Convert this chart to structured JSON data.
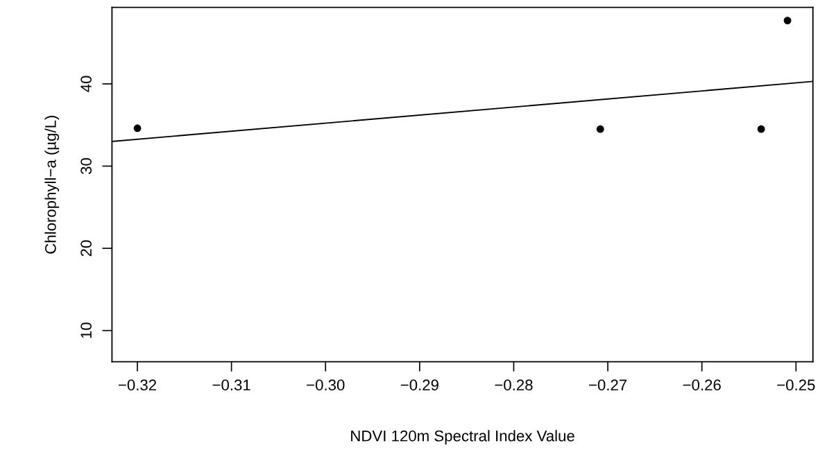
{
  "chart_data": {
    "type": "scatter",
    "xlabel": "NDVI 120m Spectral Index Value",
    "ylabel": "Chlorophyll−a (µg/L)",
    "series": [
      {
        "color": "#000000",
        "x": [
          -0.32,
          -0.2708,
          -0.2537,
          -0.2509
        ],
        "values": [
          34.6,
          34.5,
          34.5,
          47.7
        ]
      },
      {
        "type": "line",
        "color": "#000000",
        "x": [
          -0.3227,
          -0.2482
        ],
        "values": [
          33.0,
          40.3
        ],
        "marker": "none"
      }
    ],
    "marker": "circle",
    "xlim": [
      -0.3227,
      -0.2482
    ],
    "ylim": [
      6.2,
      49.3
    ],
    "xticks": [
      {
        "value": -0.32,
        "label": "−0.32"
      },
      {
        "value": -0.31,
        "label": "−0.31"
      },
      {
        "value": -0.3,
        "label": "−0.30"
      },
      {
        "value": -0.29,
        "label": "−0.29"
      },
      {
        "value": -0.28,
        "label": "−0.28"
      },
      {
        "value": -0.27,
        "label": "−0.27"
      },
      {
        "value": -0.26,
        "label": "−0.26"
      },
      {
        "value": -0.25,
        "label": "−0.25"
      }
    ],
    "yticks": [
      10,
      20,
      30,
      40
    ]
  }
}
